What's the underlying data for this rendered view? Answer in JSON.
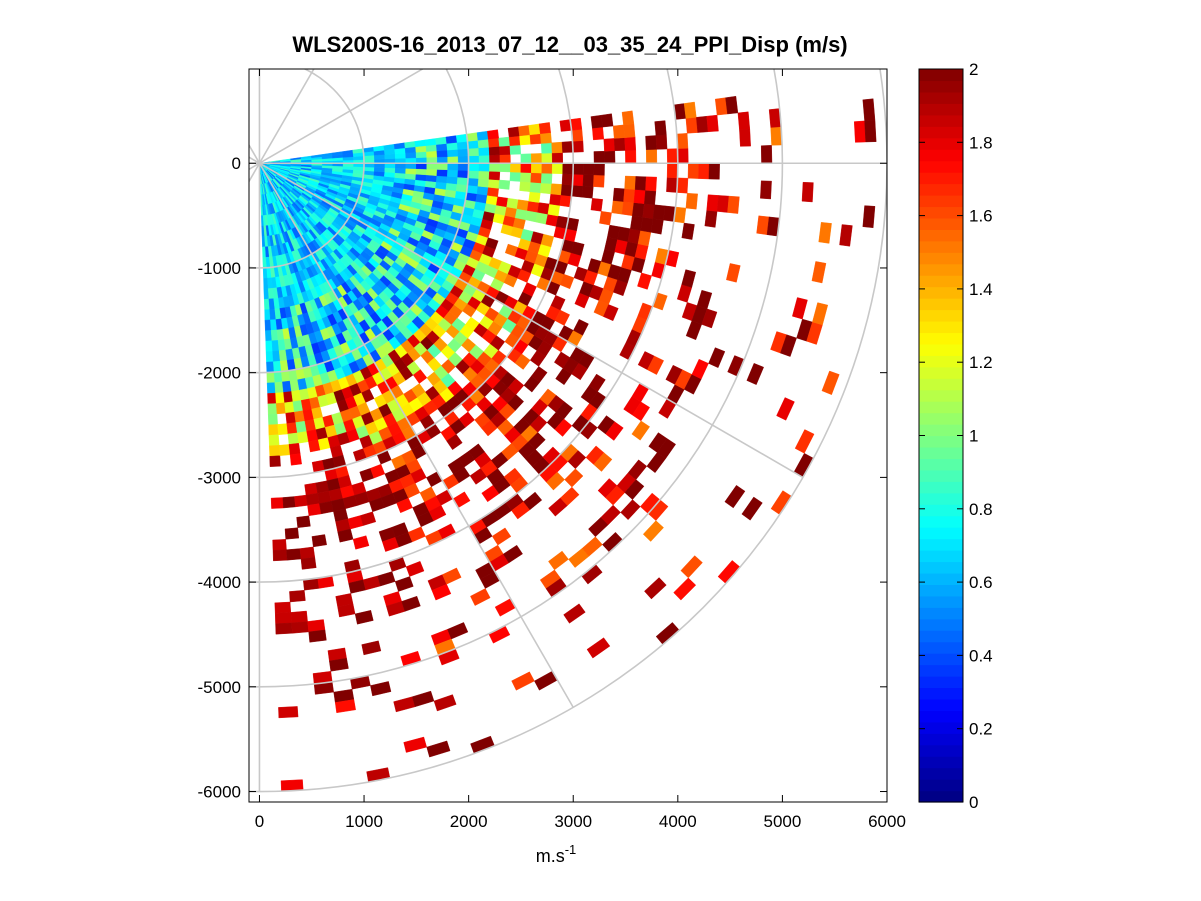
{
  "chart_data": {
    "type": "heatmap",
    "subtype": "polar-ppi-scan",
    "title": "WLS200S-16_2013_07_12__03_35_24_PPI_Disp (m/s)",
    "xlabel": "m.s",
    "xlabel_superscript": "-1",
    "ylabel": "",
    "xlim": [
      -100,
      6000
    ],
    "ylim": [
      -6100,
      900
    ],
    "xticks": [
      {
        "value": 0,
        "label": "0"
      },
      {
        "value": 1000,
        "label": "1000"
      },
      {
        "value": 2000,
        "label": "2000"
      },
      {
        "value": 3000,
        "label": "3000"
      },
      {
        "value": 4000,
        "label": "4000"
      },
      {
        "value": 5000,
        "label": "5000"
      },
      {
        "value": 6000,
        "label": "6000"
      }
    ],
    "yticks": [
      {
        "value": 0,
        "label": "0"
      },
      {
        "value": -1000,
        "label": "-1000"
      },
      {
        "value": -2000,
        "label": "-2000"
      },
      {
        "value": -3000,
        "label": "-3000"
      },
      {
        "value": -4000,
        "label": "-4000"
      },
      {
        "value": -5000,
        "label": "-5000"
      },
      {
        "value": -6000,
        "label": "-6000"
      }
    ],
    "polar_grid": {
      "range_rings_m": [
        1000,
        2000,
        3000,
        4000,
        5000,
        6000
      ],
      "spoke_angles_deg": [
        30,
        60,
        0,
        -30,
        -60,
        -90
      ],
      "grid_color": "#c8c8c8"
    },
    "scan": {
      "azimuth_min_deg": -88,
      "azimuth_max_deg": 8,
      "azimuth_step_deg": 2,
      "max_range_m": 6000,
      "gate_length_m": 100,
      "value_range": [
        0,
        2
      ]
    },
    "colorbar": {
      "colormap": "jet",
      "clim": [
        0,
        2
      ],
      "ticks": [
        {
          "value": 0,
          "label": "0"
        },
        {
          "value": 0.2,
          "label": "0.2"
        },
        {
          "value": 0.4,
          "label": "0.4"
        },
        {
          "value": 0.6,
          "label": "0.6"
        },
        {
          "value": 0.8,
          "label": "0.8"
        },
        {
          "value": 1,
          "label": "1"
        },
        {
          "value": 1.2,
          "label": "1.2"
        },
        {
          "value": 1.4,
          "label": "1.4"
        },
        {
          "value": 1.6,
          "label": "1.6"
        },
        {
          "value": 1.8,
          "label": "1.8"
        },
        {
          "value": 2,
          "label": "2"
        }
      ]
    }
  }
}
